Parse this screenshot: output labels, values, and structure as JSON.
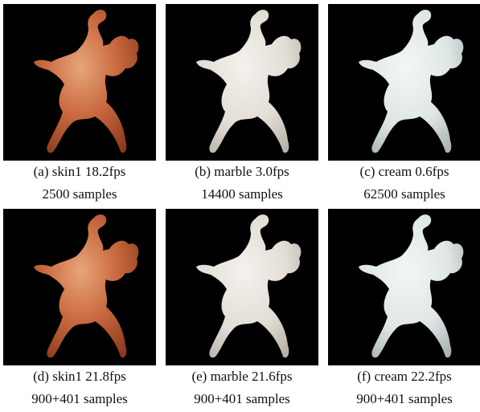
{
  "panels": [
    {
      "caption": "(a) skin1 18.2fps",
      "samples": "2500 samples"
    },
    {
      "caption": "(b) marble 3.0fps",
      "samples": "14400 samples"
    },
    {
      "caption": "(c) cream 0.6fps",
      "samples": "62500 samples"
    },
    {
      "caption": "(d) skin1 21.8fps",
      "samples": "900+401 samples"
    },
    {
      "caption": "(e) marble 21.6fps",
      "samples": "900+401 samples"
    },
    {
      "caption": "(f) cream 22.2fps",
      "samples": "900+401 samples"
    }
  ]
}
